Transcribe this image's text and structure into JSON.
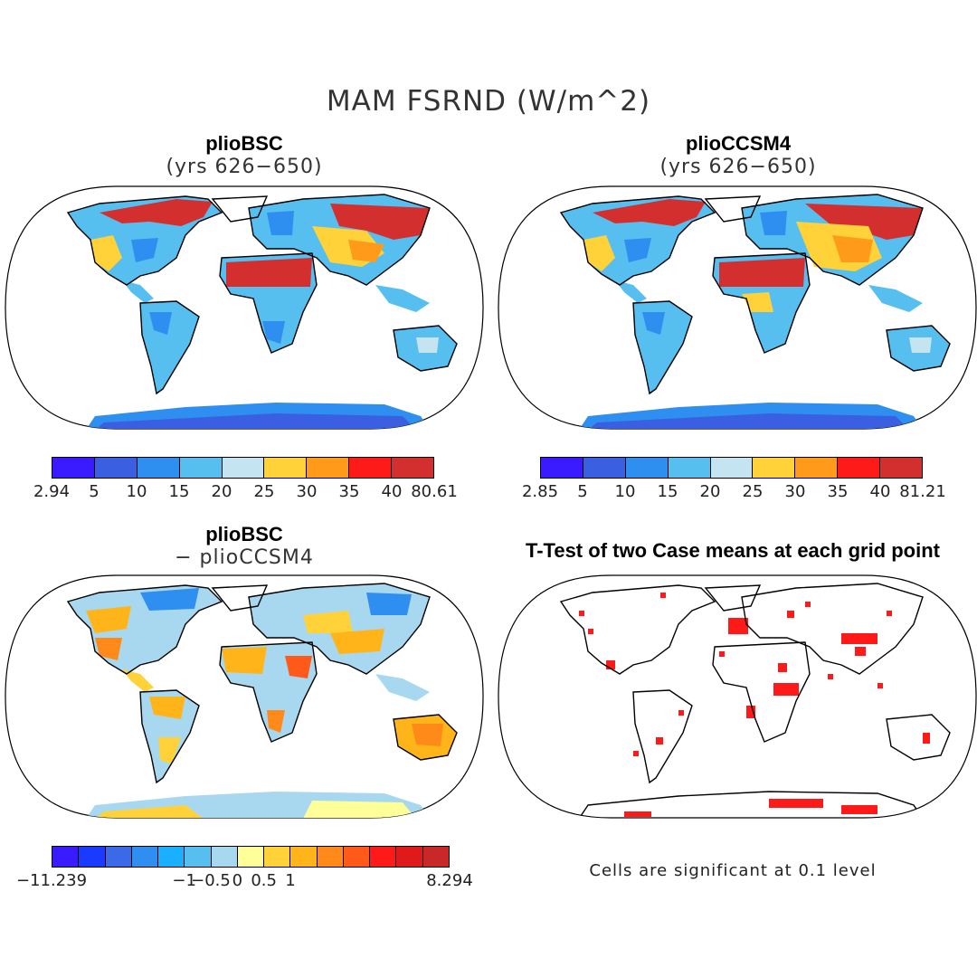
{
  "title": "MAM FSRND (W/m^2)",
  "panels": {
    "p1": {
      "title": "plioBSC",
      "subtitle": "(yrs 626−650)"
    },
    "p2": {
      "title": "plioCCSM4",
      "subtitle": "(yrs 626−650)"
    },
    "p3": {
      "title": "plioBSC",
      "subtitle": "− plioCCSM4"
    },
    "p4": {
      "title": "T-Test of two Case means at each grid point"
    }
  },
  "colorbars": {
    "cb1": {
      "colors": [
        "#3a1aff",
        "#3a5fe0",
        "#2f8ff0",
        "#56bff0",
        "#c4e4f2",
        "#ffd23a",
        "#ff9a1a",
        "#ff1a1a",
        "#d42f2f"
      ],
      "labels": [
        "2.94",
        "5",
        "10",
        "15",
        "20",
        "25",
        "30",
        "35",
        "40",
        "80.61"
      ]
    },
    "cb2": {
      "colors": [
        "#3a1aff",
        "#3a5fe0",
        "#2f8ff0",
        "#56bff0",
        "#c4e4f2",
        "#ffd23a",
        "#ff9a1a",
        "#ff1a1a",
        "#d42f2f"
      ],
      "labels": [
        "2.85",
        "5",
        "10",
        "15",
        "20",
        "25",
        "30",
        "35",
        "40",
        "81.21"
      ]
    },
    "cb3": {
      "colors": [
        "#3a1aff",
        "#1a3aff",
        "#3a6ae8",
        "#2f8ff0",
        "#1ab0ff",
        "#56bff0",
        "#a8d8f0",
        "#ffff99",
        "#ffd23a",
        "#ffb41a",
        "#ff8a1a",
        "#ff5a1a",
        "#ff1a1a",
        "#e01a1a",
        "#c82828"
      ],
      "labels": [
        "−11.239",
        "−1",
        "−0.5",
        "0",
        "0.5",
        "1",
        "8.294"
      ]
    }
  },
  "significance_note": "Cells are significant at 0.1 level",
  "field_colors": {
    "warm": "#d42f2f",
    "orange": "#ff9a1a",
    "yellow": "#ffd23a",
    "lightblue": "#56bff0",
    "blue": "#2f8ff0",
    "deepblue": "#3a5fe0",
    "significant": "#ff1a1a"
  }
}
